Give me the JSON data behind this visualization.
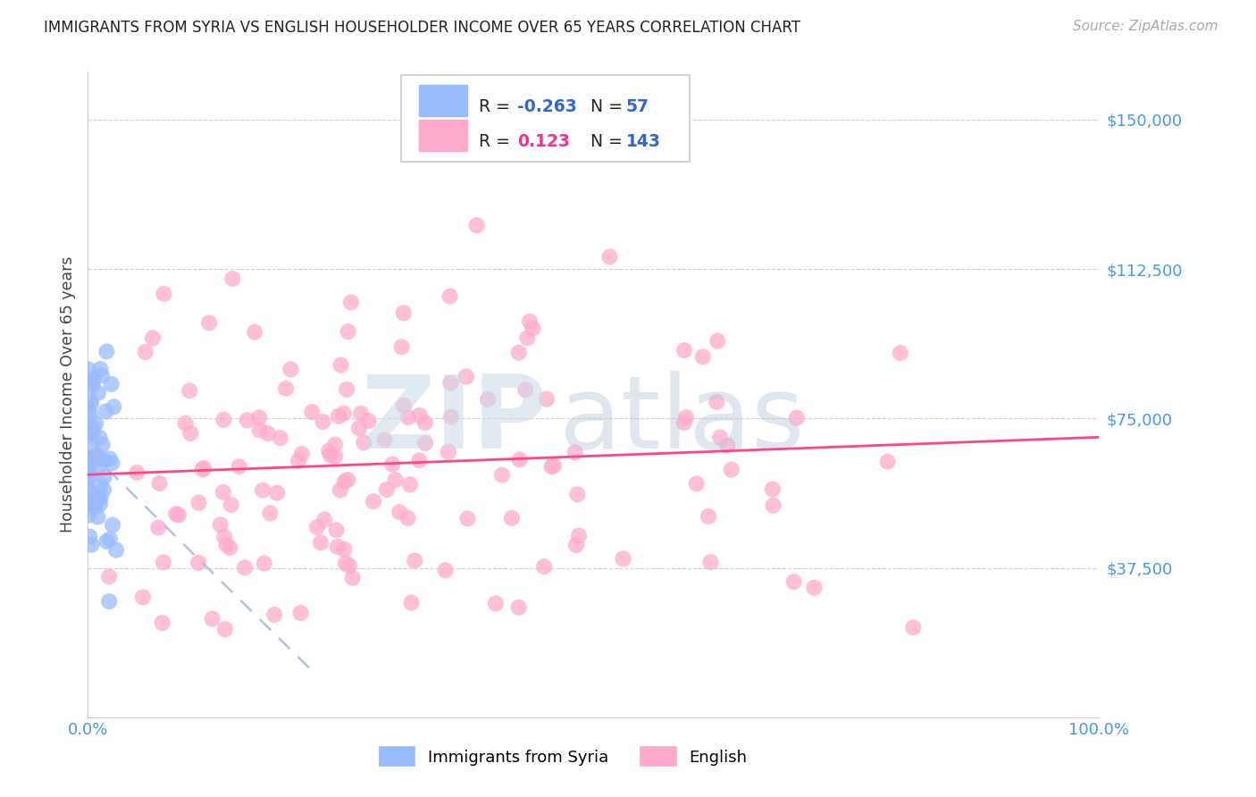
{
  "title": "IMMIGRANTS FROM SYRIA VS ENGLISH HOUSEHOLDER INCOME OVER 65 YEARS CORRELATION CHART",
  "source": "Source: ZipAtlas.com",
  "ylabel": "Householder Income Over 65 years",
  "yticks": [
    0,
    37500,
    75000,
    112500,
    150000
  ],
  "ytick_labels": [
    "",
    "$37,500",
    "$75,000",
    "$112,500",
    "$150,000"
  ],
  "ylim_max": 162000,
  "xlim": [
    0.0,
    1.0
  ],
  "legend1_r": "-0.263",
  "legend1_n": "57",
  "legend2_r": "0.123",
  "legend2_n": "143",
  "blue_scatter_color": "#99bbff",
  "pink_scatter_color": "#ffaacc",
  "trend_blue_color": "#aabbdd",
  "trend_pink_color": "#ff4488",
  "axis_color": "#4499ee",
  "title_color": "#222222",
  "source_color": "#aaaaaa",
  "grid_color": "#cccccc",
  "background_color": "#ffffff",
  "legend_r1_color": "#3366cc",
  "legend_r2_color": "#ee3388",
  "legend_n_color": "#3366cc"
}
